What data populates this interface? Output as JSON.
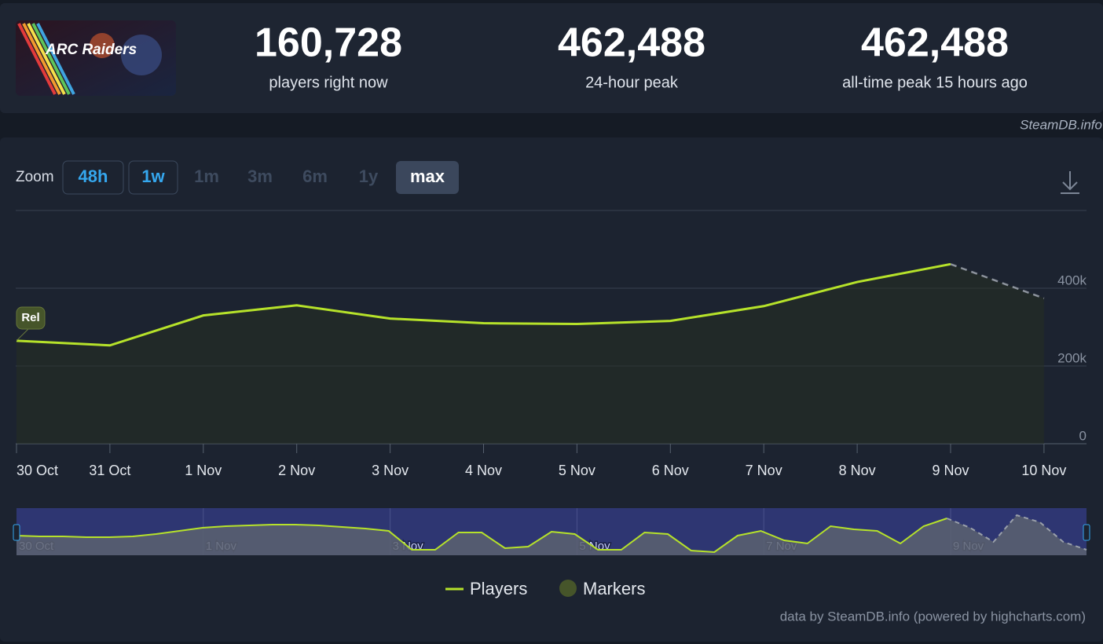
{
  "header": {
    "image_text": "ARC Raiders",
    "stats": [
      {
        "value": "160,728",
        "label": "players right now"
      },
      {
        "value": "462,488",
        "label": "24-hour peak"
      },
      {
        "value": "462,488",
        "label": "all-time peak 15 hours ago"
      }
    ],
    "source": "SteamDB.info"
  },
  "zoom": {
    "label": "Zoom",
    "buttons": [
      "48h",
      "1w",
      "1m",
      "3m",
      "6m",
      "1y",
      "max"
    ],
    "enabled": [
      "48h",
      "1w"
    ],
    "selected": "max"
  },
  "chart_data": {
    "type": "line",
    "categories": [
      "30 Oct",
      "31 Oct",
      "1 Nov",
      "2 Nov",
      "3 Nov",
      "4 Nov",
      "5 Nov",
      "6 Nov",
      "7 Nov",
      "8 Nov",
      "9 Nov",
      "10 Nov"
    ],
    "series": [
      {
        "name": "Players",
        "color": "#b6e22a",
        "values": [
          265000,
          253000,
          330000,
          356000,
          322000,
          310000,
          308000,
          316000,
          354000,
          416000,
          462000,
          374000
        ]
      }
    ],
    "last_segment_dashed": true,
    "ylim": [
      0,
      600000
    ],
    "yticks": [
      0,
      {
        "value": 200000,
        "label": "200k"
      },
      {
        "value": 400000,
        "label": "400k"
      }
    ],
    "grid": true,
    "annotations": [
      {
        "text": "Rel",
        "category": "30 Oct"
      }
    ],
    "markers": {
      "name": "Markers",
      "color": "#46552a"
    },
    "navigator": {
      "labels": [
        "30 Oct",
        "1 Nov",
        "3 Nov",
        "5 Nov",
        "7 Nov",
        "9 Nov"
      ],
      "ylim": [
        0,
        570000
      ],
      "projection_from_index": 40,
      "values": [
        237500,
        228000,
        228000,
        218500,
        218500,
        228000,
        256500,
        294500,
        332500,
        351500,
        361000,
        370500,
        370500,
        361000,
        342000,
        323000,
        294500,
        66500,
        66500,
        275500,
        275500,
        85500,
        104500,
        285000,
        256500,
        66500,
        66500,
        275500,
        256500,
        57000,
        38000,
        237500,
        294500,
        180500,
        142500,
        351500,
        313500,
        294500,
        142500,
        351500,
        446500,
        332500,
        161500,
        484500,
        399000,
        161500,
        66500
      ]
    },
    "credits": "data by SteamDB.info (powered by highcharts.com)"
  }
}
